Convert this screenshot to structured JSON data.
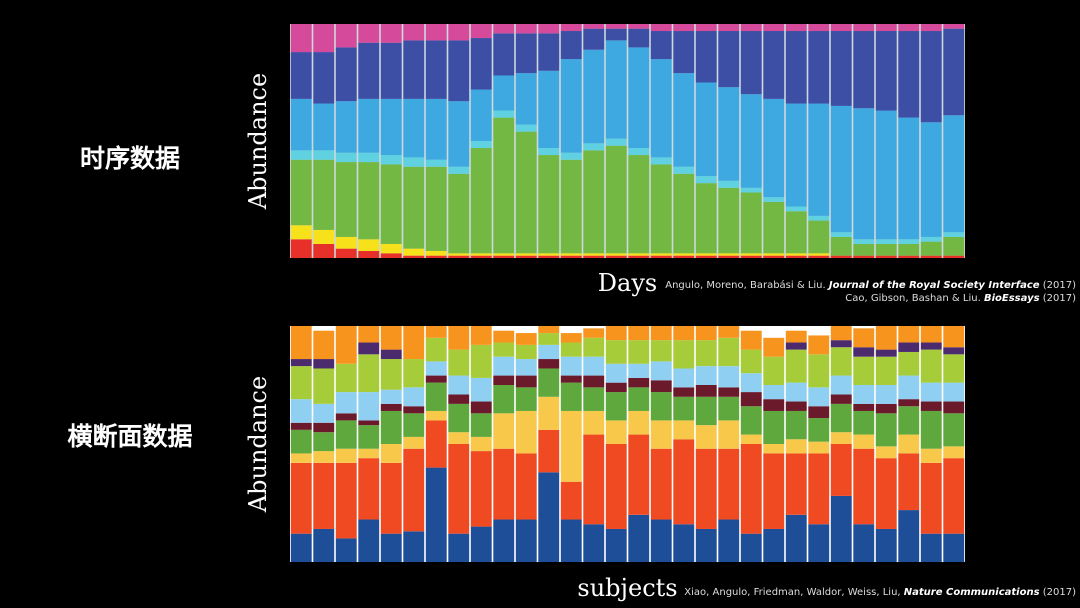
{
  "chart_data": [
    {
      "type": "bar",
      "stacked": true,
      "title": "时序数据",
      "x_label": "Days",
      "y_label": "Abundance",
      "ylim": [
        0,
        100
      ],
      "citations": [
        {
          "authors": "Angulo, Moreno, Barabási & Liu.",
          "journal": "Journal of the Royal Society Interface",
          "year": "(2017)"
        },
        {
          "authors": "Cao, Gibson, Bashan & Liu.",
          "journal": "BioEssays",
          "year": "(2017)"
        }
      ],
      "series": [
        {
          "color": "#e8302a",
          "values": [
            8,
            6,
            4,
            3,
            2,
            1,
            1,
            1,
            1,
            1,
            1,
            1,
            1,
            1,
            1,
            1,
            1,
            1,
            1,
            1,
            1,
            1,
            1,
            1,
            1,
            1,
            1,
            1,
            1,
            1
          ]
        },
        {
          "color": "#f7e11b",
          "values": [
            6,
            6,
            5,
            5,
            4,
            3,
            2,
            1,
            1,
            1,
            1,
            1,
            1,
            1,
            1,
            1,
            1,
            1,
            1,
            1,
            1,
            1,
            1,
            1,
            0,
            0,
            0,
            0,
            0,
            0
          ]
        },
        {
          "color": "#72b843",
          "values": [
            28,
            30,
            32,
            33,
            34,
            35,
            36,
            34,
            45,
            58,
            52,
            42,
            40,
            44,
            46,
            42,
            38,
            34,
            30,
            28,
            26,
            22,
            18,
            14,
            8,
            5,
            5,
            5,
            6,
            8
          ]
        },
        {
          "color": "#5fd1e0",
          "values": [
            4,
            4,
            4,
            4,
            4,
            4,
            3,
            3,
            3,
            3,
            3,
            3,
            3,
            3,
            3,
            3,
            3,
            3,
            3,
            3,
            2,
            2,
            2,
            2,
            2,
            2,
            2,
            2,
            2,
            2
          ]
        },
        {
          "color": "#3ea8e0",
          "values": [
            22,
            20,
            22,
            23,
            24,
            25,
            26,
            28,
            22,
            15,
            22,
            33,
            40,
            40,
            42,
            43,
            42,
            40,
            40,
            40,
            40,
            42,
            44,
            48,
            54,
            56,
            55,
            52,
            49,
            50
          ]
        },
        {
          "color": "#3d4ea5",
          "values": [
            20,
            22,
            23,
            24,
            24,
            25,
            25,
            26,
            22,
            18,
            17,
            16,
            12,
            9,
            5,
            8,
            12,
            18,
            22,
            24,
            27,
            29,
            31,
            31,
            32,
            33,
            34,
            37,
            39,
            37
          ]
        },
        {
          "color": "#d64a9c",
          "values": [
            12,
            12,
            10,
            8,
            8,
            7,
            7,
            7,
            6,
            4,
            4,
            4,
            3,
            2,
            2,
            2,
            3,
            3,
            3,
            3,
            3,
            3,
            3,
            3,
            3,
            3,
            3,
            3,
            3,
            2
          ]
        }
      ]
    },
    {
      "type": "bar",
      "stacked": true,
      "title": "横断面数据",
      "x_label": "subjects",
      "y_label": "Abundance",
      "ylim": [
        0,
        100
      ],
      "citations": [
        {
          "authors": "Xiao, Angulo, Friedman, Waldor, Weiss, Liu,",
          "journal": "Nature Communications",
          "year": "(2017)"
        }
      ],
      "series": [
        {
          "color": "#1f4e99",
          "values": [
            12,
            14,
            10,
            18,
            12,
            13,
            40,
            12,
            15,
            18,
            18,
            38,
            18,
            16,
            14,
            20,
            18,
            16,
            14,
            18,
            12,
            14,
            20,
            16,
            28,
            16,
            14,
            22,
            12,
            12
          ]
        },
        {
          "color": "#f04a23",
          "values": [
            30,
            28,
            32,
            26,
            30,
            35,
            20,
            38,
            32,
            30,
            28,
            18,
            16,
            38,
            36,
            34,
            30,
            36,
            34,
            30,
            38,
            32,
            26,
            30,
            22,
            32,
            30,
            24,
            30,
            32
          ]
        },
        {
          "color": "#f7c84a",
          "values": [
            4,
            5,
            6,
            4,
            8,
            5,
            4,
            5,
            6,
            15,
            18,
            14,
            30,
            10,
            10,
            10,
            12,
            8,
            10,
            12,
            4,
            4,
            6,
            5,
            5,
            6,
            5,
            8,
            6,
            5
          ]
        },
        {
          "color": "#5fa83d",
          "values": [
            10,
            8,
            12,
            10,
            14,
            10,
            12,
            12,
            10,
            12,
            10,
            12,
            12,
            10,
            12,
            10,
            12,
            10,
            12,
            10,
            12,
            14,
            12,
            10,
            12,
            10,
            14,
            12,
            16,
            14
          ]
        },
        {
          "color": "#6b1a2c",
          "values": [
            3,
            4,
            3,
            2,
            3,
            3,
            3,
            4,
            5,
            4,
            5,
            4,
            3,
            5,
            4,
            4,
            5,
            4,
            5,
            4,
            6,
            5,
            4,
            5,
            4,
            3,
            4,
            3,
            4,
            5
          ]
        },
        {
          "color": "#8fd0f2",
          "values": [
            10,
            8,
            9,
            12,
            6,
            8,
            6,
            8,
            10,
            8,
            7,
            6,
            8,
            8,
            8,
            6,
            8,
            8,
            8,
            9,
            8,
            6,
            8,
            8,
            8,
            8,
            8,
            10,
            8,
            8
          ]
        },
        {
          "color": "#a6cc3a",
          "values": [
            14,
            15,
            12,
            16,
            13,
            12,
            10,
            11,
            14,
            6,
            6,
            5,
            6,
            8,
            10,
            10,
            9,
            12,
            11,
            12,
            10,
            12,
            14,
            14,
            12,
            12,
            12,
            10,
            14,
            12
          ]
        },
        {
          "color": "#4b2a6e",
          "values": [
            3,
            4,
            0,
            5,
            4,
            0,
            0,
            0,
            0,
            0,
            0,
            0,
            0,
            0,
            0,
            0,
            0,
            0,
            0,
            0,
            0,
            0,
            3,
            0,
            3,
            4,
            3,
            4,
            3,
            3
          ]
        },
        {
          "color": "#f7941e",
          "values": [
            14,
            12,
            16,
            7,
            10,
            14,
            5,
            10,
            8,
            5,
            5,
            3,
            4,
            4,
            6,
            6,
            6,
            6,
            6,
            5,
            8,
            8,
            5,
            8,
            6,
            8,
            10,
            7,
            7,
            9
          ]
        }
      ]
    }
  ]
}
